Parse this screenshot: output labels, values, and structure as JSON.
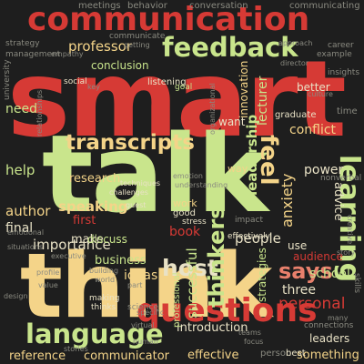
{
  "cloud": {
    "background": "#1e1e1e",
    "palette": {
      "red": "#d63a35",
      "green": "#c9e58c",
      "yellow": "#f4d489",
      "pink": "#e8806c",
      "gray": "#8a8a80",
      "cream": "#e9e2c6"
    },
    "words": {
      "smart": "smart",
      "talk": "talk",
      "think": "think",
      "communication": "communication",
      "feedback": "feedback",
      "transcripts": "transcripts",
      "questions": "questions",
      "language": "language",
      "learning": "learning",
      "says": "says",
      "host": "host",
      "professor": "professor",
      "feel": "feel",
      "leadership": "leadership",
      "thinkers": "thinkers",
      "successful": "successful",
      "people": "people",
      "anxiety": "anxiety",
      "speaking": "speaking",
      "book": "book",
      "lecturer": "lecturer",
      "conflict": "conflict",
      "power": "power",
      "personal": "personal",
      "school": "school",
      "three": "three",
      "importance": "importance",
      "effective": "effective",
      "communicator": "communicator",
      "reference": "reference",
      "introduction": "introduction",
      "something": "something",
      "author": "author",
      "help": "help",
      "need": "need",
      "final": "final",
      "first": "first",
      "business": "business",
      "ideas": "ideas",
      "make": "make",
      "research": "research",
      "conclusion": "conclusion",
      "better": "better",
      "advice": "advice",
      "audience": "audience",
      "want": "want",
      "innovation": "innovation",
      "strategies": "strategies",
      "meetings": "meetings",
      "behavior": "behavior",
      "conversation": "conversation",
      "communicating": "communicating",
      "communicate": "communicate",
      "social": "social",
      "listening": "listening",
      "good": "good",
      "work": "work",
      "way": "way",
      "discuss": "discuss",
      "use": "use",
      "leaders": "leaders",
      "goal": "goal",
      "graduate": "graduate",
      "strategy": "strategy",
      "management": "management",
      "university": "university",
      "example": "example",
      "insights": "insights",
      "career": "career",
      "culture": "culture",
      "skills": "skills",
      "connections": "connections",
      "person": "person",
      "best": "best",
      "stories": "stories",
      "human": "human",
      "making": "making",
      "thinks": "thinks",
      "science": "science",
      "story": "story",
      "emotion": "emotion",
      "understanding": "understanding",
      "nonverbal": "nonverbal",
      "stress": "stress",
      "impact": "impact",
      "professional": "professional",
      "building": "building",
      "profile": "profile",
      "challenges": "challenges",
      "guest": "guest",
      "teams": "teams",
      "focus": "focus",
      "many": "many",
      "creative": "creative",
      "time": "time",
      "director": "director",
      "approach": "approach",
      "key": "key",
      "empathy": "empathy",
      "getting": "getting",
      "organizational": "organizational",
      "value": "value",
      "virtual": "virtual",
      "specific": "specific",
      "executive": "executive",
      "situations": "situations",
      "emotional": "emotional",
      "design": "design",
      "effectively": "effectively",
      "world": "world",
      "part": "part",
      "relationships": "relationships",
      "techniques": "techniques"
    }
  }
}
